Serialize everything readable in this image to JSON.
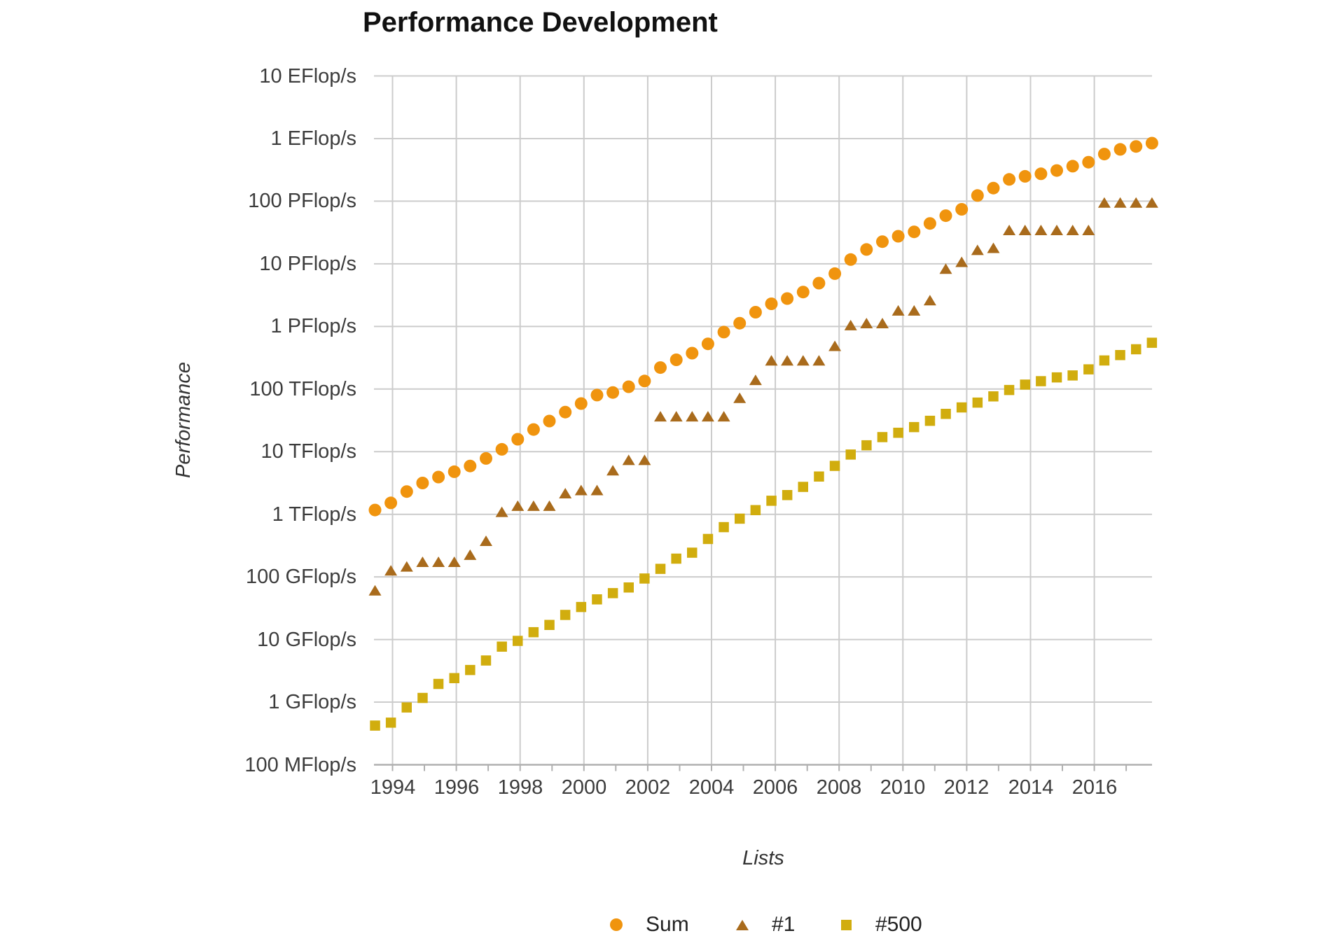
{
  "title": "Performance Development",
  "axes": {
    "y_title": "Performance",
    "x_title": "Lists",
    "y_tick_labels": [
      "10 EFlop/s",
      "1 EFlop/s",
      "100 PFlop/s",
      "10 PFlop/s",
      "1 PFlop/s",
      "100 TFlop/s",
      "10 TFlop/s",
      "1 TFlop/s",
      "100 GFlop/s",
      "10 GFlop/s",
      "1 GFlop/s",
      "100 MFlop/s"
    ],
    "x_tick_labels": [
      "1994",
      "1996",
      "1998",
      "2000",
      "2002",
      "2004",
      "2006",
      "2008",
      "2010",
      "2012",
      "2014",
      "2016"
    ]
  },
  "legend": [
    {
      "label": "Sum",
      "marker": "circle",
      "color": "#F0940E"
    },
    {
      "label": "#1",
      "marker": "triangle",
      "color": "#A96B1C"
    },
    {
      "label": "#500",
      "marker": "square",
      "color": "#D1AD0E"
    }
  ],
  "colors": {
    "sum_series": "#F0940E",
    "top1_series": "#A96B1C",
    "top500_series": "#D1AD0E",
    "gridline": "#cccccc",
    "axis_line": "#b0b0b0",
    "tick_text": "#3c3c3c",
    "title_text": "#111111"
  },
  "chart_data": {
    "type": "scatter",
    "title": "Performance Development",
    "xlabel": "Lists",
    "ylabel": "Performance",
    "y_scale": "log",
    "y_units": "GFlop/s",
    "y_range_gflops": [
      0.1,
      10000000000
    ],
    "x_range_years": [
      1993.4,
      2017.95
    ],
    "grid": true,
    "legend_position": "bottom",
    "lists": [
      "1993-06",
      "1993-11",
      "1994-06",
      "1994-11",
      "1995-06",
      "1995-11",
      "1996-06",
      "1996-11",
      "1997-06",
      "1997-11",
      "1998-06",
      "1998-11",
      "1999-06",
      "1999-11",
      "2000-06",
      "2000-11",
      "2001-06",
      "2001-11",
      "2002-06",
      "2002-11",
      "2003-06",
      "2003-11",
      "2004-06",
      "2004-11",
      "2005-06",
      "2005-11",
      "2006-06",
      "2006-11",
      "2007-06",
      "2007-11",
      "2008-06",
      "2008-11",
      "2009-06",
      "2009-11",
      "2010-06",
      "2010-11",
      "2011-06",
      "2011-11",
      "2012-06",
      "2012-11",
      "2013-06",
      "2013-11",
      "2014-06",
      "2014-11",
      "2015-06",
      "2015-11",
      "2016-06",
      "2016-11",
      "2017-06",
      "2017-11"
    ],
    "series": [
      {
        "name": "Sum",
        "marker": "circle",
        "color": "#F0940E",
        "values_gflops": [
          1170,
          1520,
          2310,
          3160,
          3930,
          4780,
          5900,
          7800,
          10900,
          15800,
          22600,
          30800,
          42900,
          58700,
          80100,
          88100,
          108800,
          134400,
          220600,
          293000,
          375000,
          528000,
          813000,
          1127000,
          1690000,
          2300000,
          2790000,
          3540000,
          4920000,
          6970000,
          11700000,
          16950000,
          22600000,
          27600000,
          32400000,
          44200000,
          58700000,
          74200000,
          123400000,
          162000000,
          223000000,
          250000000,
          274000000,
          309000000,
          363000000,
          420000000,
          566700000,
          672000000,
          749000000,
          845000000
        ]
      },
      {
        "name": "#1",
        "marker": "triangle",
        "color": "#A96B1C",
        "values_gflops": [
          59.7,
          124,
          143.4,
          170,
          170,
          170,
          220.4,
          368.2,
          1068,
          1338,
          1338,
          1338,
          2121,
          2379,
          2379,
          4938,
          7226,
          7226,
          35860,
          35860,
          35860,
          35860,
          35860,
          70720,
          136800,
          280600,
          280600,
          280600,
          280600,
          478200,
          1026000,
          1105000,
          1105000,
          1759000,
          1759000,
          2566000,
          8162000,
          10510000,
          16320000,
          17590000,
          33860000,
          33860000,
          33860000,
          33860000,
          33860000,
          33860000,
          93010000,
          93010000,
          93010000,
          93010000
        ]
      },
      {
        "name": "#500",
        "marker": "square",
        "color": "#D1AD0E",
        "values_gflops": [
          0.422,
          0.47,
          0.822,
          1.167,
          1.955,
          2.42,
          3.26,
          4.62,
          7.7,
          9.5,
          13.1,
          17.1,
          24.7,
          33.1,
          43.8,
          55.1,
          67.8,
          94.3,
          134.3,
          195.8,
          243.9,
          403.4,
          624,
          850.6,
          1166,
          1646,
          2026,
          2737,
          4005,
          5930,
          9000,
          12640,
          17100,
          20050,
          24670,
          31110,
          40190,
          50920,
          60820,
          76460,
          96620,
          117800,
          133700,
          153600,
          164800,
          206300,
          286100,
          349300,
          432200,
          548700
        ]
      }
    ]
  }
}
